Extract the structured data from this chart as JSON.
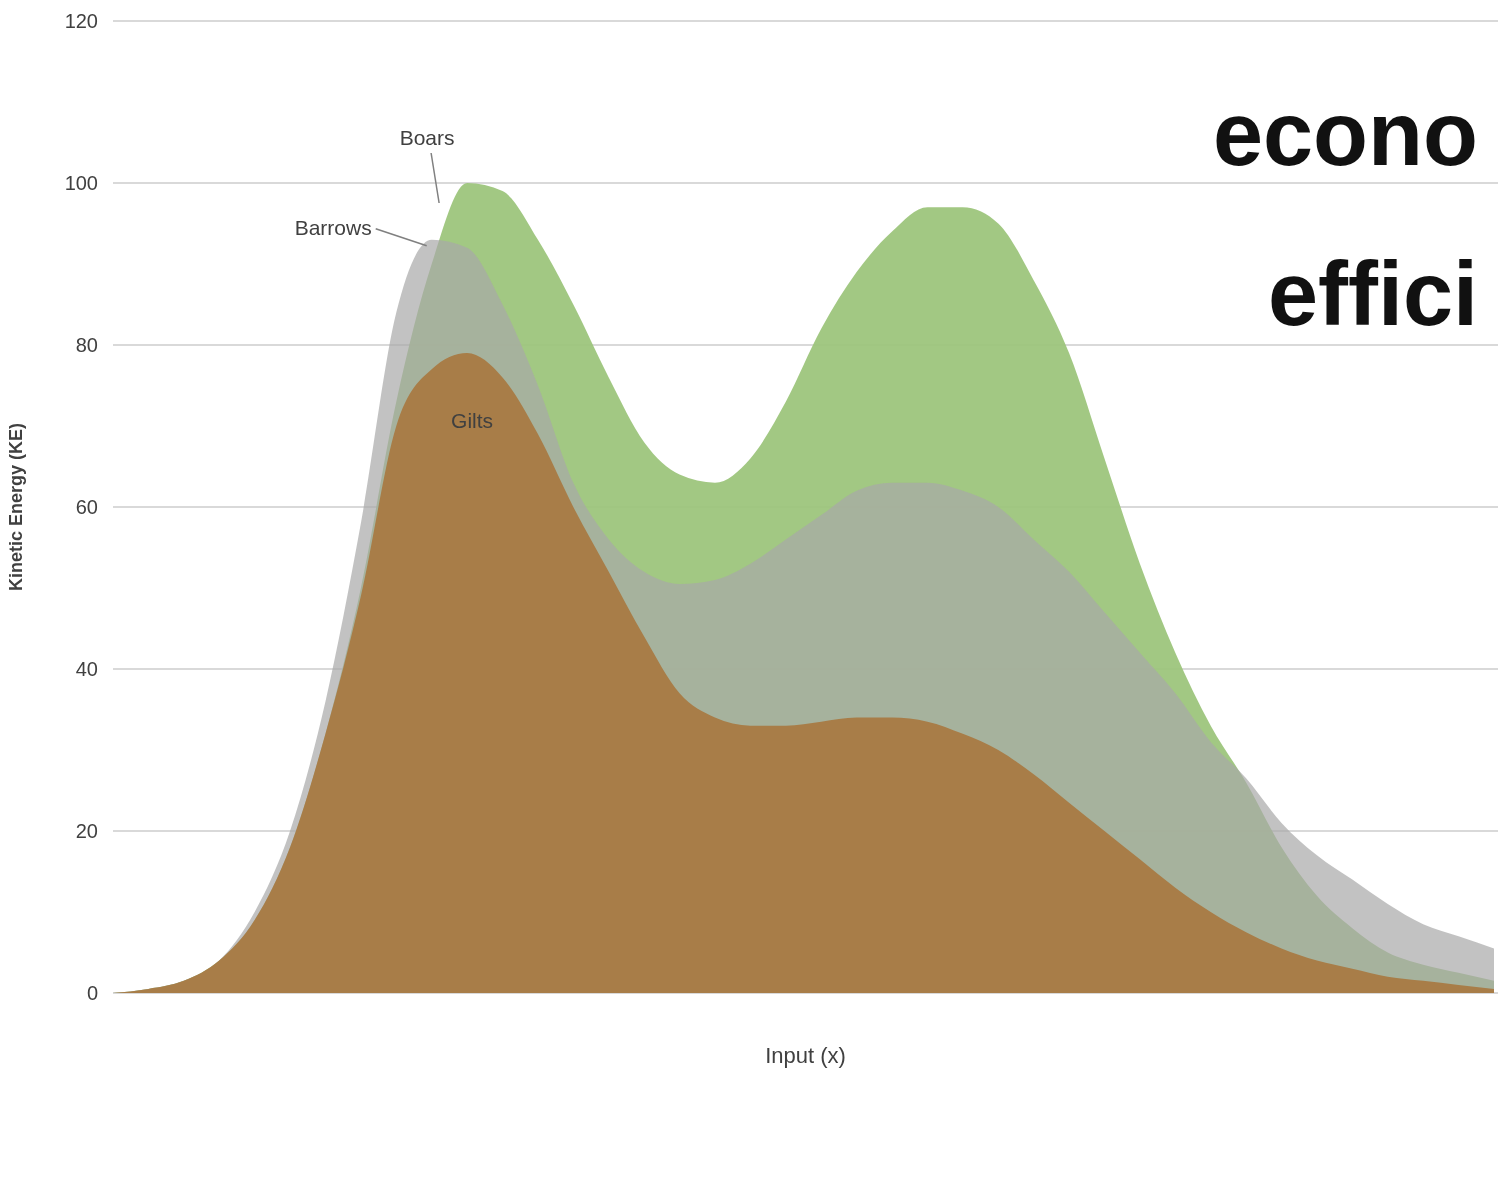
{
  "chart_data": {
    "type": "area",
    "xlabel": "Input (x)",
    "ylabel": "Kinetic Energy (KE)",
    "categories": [
      null,
      null,
      null,
      null,
      null,
      null,
      null,
      null,
      null,
      null,
      null,
      null,
      null,
      null,
      null,
      null,
      null,
      null,
      null,
      null,
      null,
      null,
      null,
      null,
      null,
      null,
      null,
      null,
      null,
      null,
      null,
      null,
      null,
      null,
      null,
      null,
      null,
      null,
      null,
      null
    ],
    "series": [
      {
        "name": "Boars",
        "color": "#9dc57c",
        "values": [
          0,
          0.5,
          1.5,
          4,
          9,
          18,
          32,
          50,
          73,
          90,
          100,
          99,
          93,
          85,
          76,
          68,
          64,
          63,
          66,
          73,
          82,
          89,
          94,
          97,
          97,
          95,
          88,
          79,
          66,
          53,
          42,
          33,
          26,
          18,
          12,
          8,
          5,
          3.5,
          2.5,
          1.5
        ]
      },
      {
        "name": "Barrows",
        "color": "#a8a8a8",
        "values": [
          0,
          0.5,
          1.5,
          4,
          10,
          20,
          36,
          58,
          84,
          93,
          92,
          85,
          75,
          63,
          56,
          52,
          50.5,
          51,
          53,
          56,
          59,
          62,
          63,
          63,
          62,
          60,
          56,
          52,
          47,
          42,
          37,
          31,
          26.5,
          21,
          17,
          14,
          11,
          8.5,
          7,
          5.5
        ]
      },
      {
        "name": "Gilts",
        "color": "#a87d48",
        "values": [
          0,
          0.5,
          1.5,
          4,
          9,
          18,
          32,
          49,
          70,
          77,
          79,
          76,
          69,
          60,
          52,
          44,
          37,
          34,
          33,
          33,
          33.5,
          34,
          34,
          33.5,
          32,
          30,
          27,
          23.5,
          20,
          16.5,
          13,
          10,
          7.5,
          5.5,
          4,
          3,
          2,
          1.5,
          1,
          0.5
        ]
      }
    ],
    "ylim": [
      0,
      120
    ],
    "yticks": [
      0,
      20,
      40,
      60,
      80,
      100,
      120
    ],
    "grid": "y",
    "annotations": [
      "econo",
      "effici"
    ]
  }
}
